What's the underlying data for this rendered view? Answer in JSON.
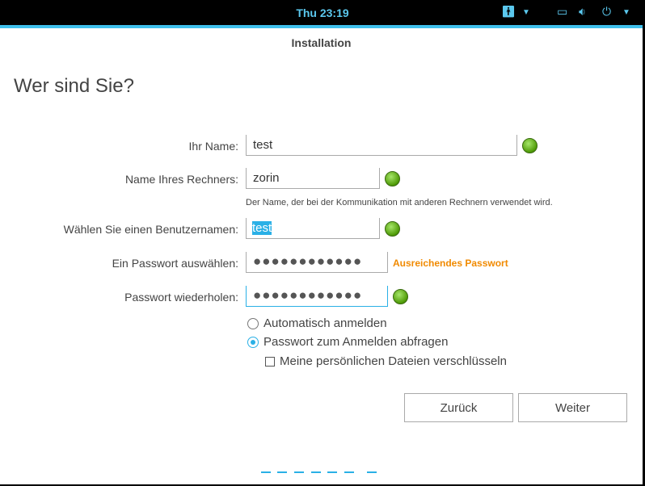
{
  "topbar": {
    "clock": "Thu 23:19",
    "icons": [
      "accessibility-icon",
      "chevron-down-icon",
      "display-icon",
      "volume-icon",
      "power-icon",
      "chevron-down-icon"
    ]
  },
  "window": {
    "title": "Installation"
  },
  "page": {
    "heading": "Wer sind Sie?"
  },
  "form": {
    "name_label": "Ihr Name:",
    "name_value": "test",
    "computer_label": "Name Ihres Rechners:",
    "computer_value": "zorin",
    "computer_hint": "Der Name, der bei der Kommunikation mit anderen Rechnern verwendet wird.",
    "username_label": "Wählen Sie einen Benutzernamen:",
    "username_value": "test",
    "password_label": "Ein Passwort auswählen:",
    "password_value": "●●●●●●●●●●●●",
    "password_strength": "Ausreichendes Passwort",
    "confirm_label": "Passwort wiederholen:",
    "confirm_value": "●●●●●●●●●●●●",
    "auto_login": "Automatisch anmelden",
    "require_password": "Passwort zum Anmelden abfragen",
    "encrypt_home": "Meine persönlichen Dateien verschlüsseln",
    "selected_login_option": "require_password",
    "encrypt_checked": false
  },
  "buttons": {
    "back": "Zurück",
    "next": "Weiter"
  },
  "colors": {
    "accent": "#3fc0ec",
    "strength": "#f18a00",
    "ok": "#4e9a06"
  },
  "progress": {
    "steps": 7
  }
}
